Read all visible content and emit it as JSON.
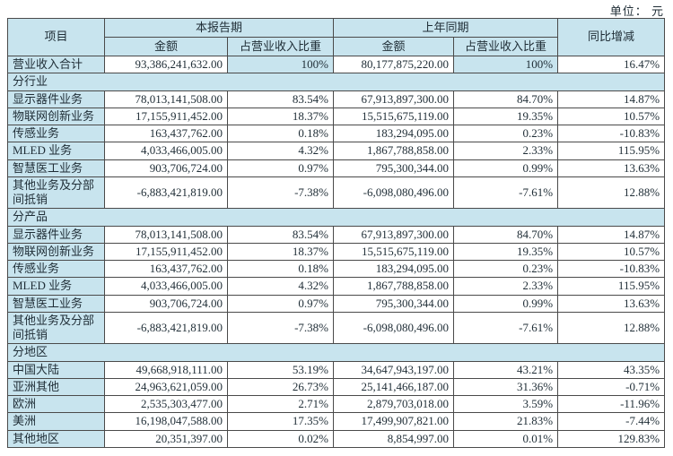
{
  "unit_label": "单位： 元",
  "colors": {
    "highlight_blue": "#c8e4ee",
    "border": "#4a4a4a",
    "text": "#1f2d36"
  },
  "table": {
    "headers": {
      "item": "项目",
      "current_period": "本报告期",
      "prior_period": "上年同期",
      "amount": "金额",
      "pct_of_revenue": "占营业收入比重",
      "yoy_change": "同比增减"
    },
    "total_row": {
      "label": "营业收入合计",
      "cur_amount": "93,386,241,632.00",
      "cur_pct": "100%",
      "prior_amount": "80,177,875,220.00",
      "prior_pct": "100%",
      "yoy": "16.47%"
    },
    "sections": [
      {
        "title": "分行业",
        "rows": [
          {
            "label": "显示器件业务",
            "cur_amount": "78,013,141,508.00",
            "cur_pct": "83.54%",
            "prior_amount": "67,913,897,300.00",
            "prior_pct": "84.70%",
            "yoy": "14.87%"
          },
          {
            "label": "物联网创新业务",
            "cur_amount": "17,155,911,452.00",
            "cur_pct": "18.37%",
            "prior_amount": "15,515,675,119.00",
            "prior_pct": "19.35%",
            "yoy": "10.57%"
          },
          {
            "label": "传感业务",
            "cur_amount": "163,437,762.00",
            "cur_pct": "0.18%",
            "prior_amount": "183,294,095.00",
            "prior_pct": "0.23%",
            "yoy": "-10.83%"
          },
          {
            "label": "MLED 业务",
            "cur_amount": "4,033,466,005.00",
            "cur_pct": "4.32%",
            "prior_amount": "1,867,788,858.00",
            "prior_pct": "2.33%",
            "yoy": "115.95%"
          },
          {
            "label": "智慧医工业务",
            "cur_amount": "903,706,724.00",
            "cur_pct": "0.97%",
            "prior_amount": "795,300,344.00",
            "prior_pct": "0.99%",
            "yoy": "13.63%"
          },
          {
            "label": "其他业务及分部间抵销",
            "cur_amount": "-6,883,421,819.00",
            "cur_pct": "-7.38%",
            "prior_amount": "-6,098,080,496.00",
            "prior_pct": "-7.61%",
            "yoy": "12.88%"
          }
        ]
      },
      {
        "title": "分产品",
        "rows": [
          {
            "label": "显示器件业务",
            "cur_amount": "78,013,141,508.00",
            "cur_pct": "83.54%",
            "prior_amount": "67,913,897,300.00",
            "prior_pct": "84.70%",
            "yoy": "14.87%"
          },
          {
            "label": "物联网创新业务",
            "cur_amount": "17,155,911,452.00",
            "cur_pct": "18.37%",
            "prior_amount": "15,515,675,119.00",
            "prior_pct": "19.35%",
            "yoy": "10.57%"
          },
          {
            "label": "传感业务",
            "cur_amount": "163,437,762.00",
            "cur_pct": "0.18%",
            "prior_amount": "183,294,095.00",
            "prior_pct": "0.23%",
            "yoy": "-10.83%"
          },
          {
            "label": "MLED 业务",
            "cur_amount": "4,033,466,005.00",
            "cur_pct": "4.32%",
            "prior_amount": "1,867,788,858.00",
            "prior_pct": "2.33%",
            "yoy": "115.95%"
          },
          {
            "label": "智慧医工业务",
            "cur_amount": "903,706,724.00",
            "cur_pct": "0.97%",
            "prior_amount": "795,300,344.00",
            "prior_pct": "0.99%",
            "yoy": "13.63%"
          },
          {
            "label": "其他业务及分部间抵销",
            "cur_amount": "-6,883,421,819.00",
            "cur_pct": "-7.38%",
            "prior_amount": "-6,098,080,496.00",
            "prior_pct": "-7.61%",
            "yoy": "12.88%"
          }
        ]
      },
      {
        "title": "分地区",
        "rows": [
          {
            "label": "中国大陆",
            "cur_amount": "49,668,918,111.00",
            "cur_pct": "53.19%",
            "prior_amount": "34,647,943,197.00",
            "prior_pct": "43.21%",
            "yoy": "43.35%"
          },
          {
            "label": "亚洲其他",
            "cur_amount": "24,963,621,059.00",
            "cur_pct": "26.73%",
            "prior_amount": "25,141,466,187.00",
            "prior_pct": "31.36%",
            "yoy": "-0.71%"
          },
          {
            "label": "欧洲",
            "cur_amount": "2,535,303,477.00",
            "cur_pct": "2.71%",
            "prior_amount": "2,879,703,018.00",
            "prior_pct": "3.59%",
            "yoy": "-11.96%"
          },
          {
            "label": "美洲",
            "cur_amount": "16,198,047,588.00",
            "cur_pct": "17.35%",
            "prior_amount": "17,499,907,821.00",
            "prior_pct": "21.83%",
            "yoy": "-7.44%"
          },
          {
            "label": "其他地区",
            "cur_amount": "20,351,397.00",
            "cur_pct": "0.02%",
            "prior_amount": "8,854,997.00",
            "prior_pct": "0.01%",
            "yoy": "129.83%"
          }
        ]
      }
    ]
  }
}
